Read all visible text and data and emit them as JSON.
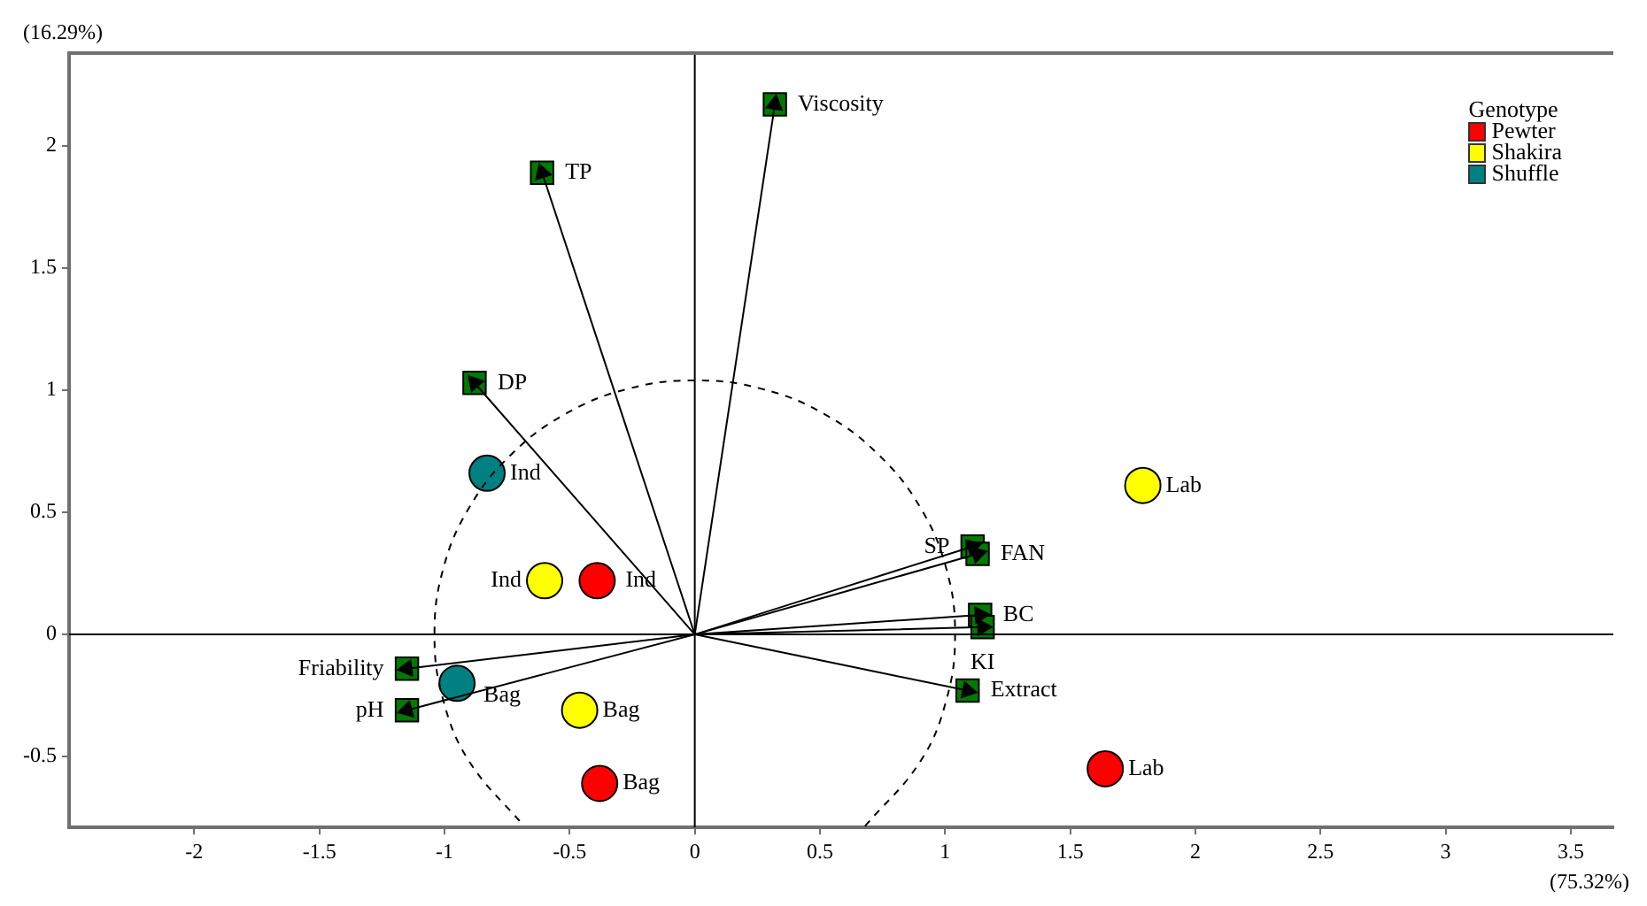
{
  "chart_data": {
    "type": "scatter",
    "xlabel": "(75.32%)",
    "ylabel": "(16.29%)",
    "legend_title": "Genotype",
    "legend": "top right",
    "grid": false,
    "xlim": [
      -2.5,
      3.67
    ],
    "ylim": [
      -0.79,
      2.38
    ],
    "xticks": [
      -2,
      -1.5,
      -1,
      -0.5,
      0,
      0.5,
      1,
      1.5,
      2,
      2.5,
      3,
      3.5
    ],
    "yticks": [
      -0.5,
      0,
      0.5,
      1,
      1.5,
      2
    ],
    "series": [
      {
        "type": "line",
        "line_style": "solid",
        "marker": "none",
        "color": "#000000",
        "x": [
          0,
          0
        ],
        "values": [
          -0.79,
          2.38
        ]
      },
      {
        "type": "line",
        "line_style": "solid",
        "marker": "none",
        "color": "#000000",
        "x": [
          -2.5,
          3.67
        ],
        "values": [
          0,
          0
        ]
      },
      {
        "type": "line",
        "line_style": "dashed",
        "marker": "none",
        "color": "#000000",
        "x": [
          0.68,
          0.901,
          1.005,
          1.04,
          1.005,
          0.901,
          0.735,
          0.52,
          0.269,
          0,
          -0.269,
          -0.52,
          -0.735,
          -0.901,
          -1.005,
          -1.04,
          -1.005,
          -0.901,
          -0.682
        ],
        "values": [
          -0.785,
          -0.52,
          -0.269,
          0,
          0.269,
          0.52,
          0.735,
          0.901,
          1.005,
          1.04,
          1.005,
          0.901,
          0.735,
          0.52,
          0.269,
          0,
          -0.269,
          -0.52,
          -0.785
        ]
      },
      {
        "type": "scatter",
        "marker": "square",
        "color": "#007a00",
        "x": [
          0.32,
          -0.61,
          -0.88,
          1.11,
          1.13,
          1.14,
          1.15,
          1.09,
          -1.15,
          -1.15
        ],
        "values": [
          2.17,
          1.89,
          1.03,
          0.36,
          0.33,
          0.08,
          0.03,
          -0.23,
          -0.14,
          -0.31
        ]
      },
      {
        "type": "line",
        "line_style": "solid",
        "marker": "triangle",
        "color": "#000000",
        "x": [
          0,
          0.32
        ],
        "values": [
          0,
          2.17
        ]
      },
      {
        "type": "line",
        "line_style": "solid",
        "marker": "triangle",
        "color": "#000000",
        "x": [
          0,
          -0.61
        ],
        "values": [
          0,
          1.89
        ]
      },
      {
        "type": "line",
        "line_style": "solid",
        "marker": "triangle",
        "color": "#000000",
        "x": [
          0,
          -0.88
        ],
        "values": [
          0,
          1.03
        ]
      },
      {
        "type": "line",
        "line_style": "solid",
        "marker": "triangle",
        "color": "#000000",
        "x": [
          0,
          1.11
        ],
        "values": [
          0,
          0.36
        ]
      },
      {
        "type": "line",
        "line_style": "solid",
        "marker": "triangle",
        "color": "#000000",
        "x": [
          0,
          1.13
        ],
        "values": [
          0,
          0.33
        ]
      },
      {
        "type": "line",
        "line_style": "solid",
        "marker": "triangle",
        "color": "#000000",
        "x": [
          0,
          1.14
        ],
        "values": [
          0,
          0.08
        ]
      },
      {
        "type": "line",
        "line_style": "solid",
        "marker": "triangle",
        "color": "#000000",
        "x": [
          0,
          1.15
        ],
        "values": [
          0,
          0.03
        ]
      },
      {
        "type": "line",
        "line_style": "solid",
        "marker": "triangle",
        "color": "#000000",
        "x": [
          0,
          1.09
        ],
        "values": [
          0,
          -0.23
        ]
      },
      {
        "type": "line",
        "line_style": "solid",
        "marker": "triangle",
        "color": "#000000",
        "x": [
          0,
          -1.15
        ],
        "values": [
          0,
          -0.14
        ]
      },
      {
        "type": "line",
        "line_style": "solid",
        "marker": "triangle",
        "color": "#000000",
        "x": [
          0,
          -1.15
        ],
        "values": [
          0,
          -0.31
        ]
      },
      {
        "name": "Pewter",
        "type": "scatter",
        "marker": "circle",
        "color": "#ff0000",
        "x": [
          -0.39,
          -0.38,
          1.64
        ],
        "values": [
          0.22,
          -0.61,
          -0.55
        ]
      },
      {
        "name": "Shakira",
        "type": "scatter",
        "marker": "circle",
        "color": "#ffff00",
        "x": [
          -0.6,
          -0.46,
          1.79
        ],
        "values": [
          0.22,
          -0.31,
          0.61
        ]
      },
      {
        "name": "Shuffle",
        "type": "scatter",
        "marker": "circle",
        "color": "#008080",
        "x": [
          -0.83,
          -0.95
        ],
        "values": [
          0.66,
          -0.2
        ]
      }
    ],
    "annotations": [
      {
        "text": "Viscosity",
        "x": 0.32,
        "y": 2.17
      },
      {
        "text": "TP",
        "x": -0.61,
        "y": 1.89
      },
      {
        "text": "DP",
        "x": -0.88,
        "y": 1.03
      },
      {
        "text": "SP",
        "x": 1.11,
        "y": 0.36
      },
      {
        "text": "FAN",
        "x": 1.13,
        "y": 0.33
      },
      {
        "text": "BC",
        "x": 1.14,
        "y": 0.08
      },
      {
        "text": "KI",
        "x": 1.15,
        "y": 0.03
      },
      {
        "text": "Extract",
        "x": 1.09,
        "y": -0.23
      },
      {
        "text": "Friability",
        "x": -1.15,
        "y": -0.14
      },
      {
        "text": "pH",
        "x": -1.15,
        "y": -0.31
      },
      {
        "text": "Ind",
        "x": -0.83,
        "y": 0.66
      },
      {
        "text": "Bag",
        "x": -0.95,
        "y": -0.2
      },
      {
        "text": "Ind",
        "x": -0.6,
        "y": 0.22
      },
      {
        "text": "Bag",
        "x": -0.46,
        "y": -0.31
      },
      {
        "text": "Lab",
        "x": 1.79,
        "y": 0.61
      },
      {
        "text": "Ind",
        "x": -0.39,
        "y": 0.22
      },
      {
        "text": "Bag",
        "x": -0.38,
        "y": -0.61
      },
      {
        "text": "Lab",
        "x": 1.64,
        "y": -0.55
      }
    ]
  }
}
